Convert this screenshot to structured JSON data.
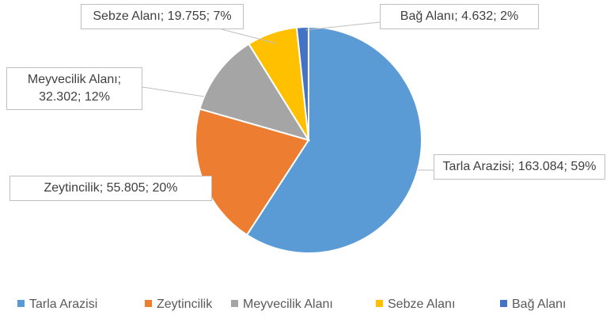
{
  "chart_data": {
    "type": "pie",
    "categories": [
      "Tarla Arazisi",
      "Zeytincilik",
      "Meyvecilik Alanı",
      "Sebze Alanı",
      "Bağ Alanı"
    ],
    "values": [
      163084,
      55805,
      32302,
      19755,
      4632
    ],
    "value_labels": [
      "Tarla Arazisi; 163.084; 59%",
      "Zeytincilik; 55.805; 20%",
      "Meyvecilik Alanı; 32.302; 12%",
      "Sebze Alanı; 19.755; 7%",
      "Bağ Alanı; 4.632; 2%"
    ],
    "colors": [
      "#5b9bd5",
      "#ed7d31",
      "#a5a5a5",
      "#ffc000",
      "#4472c4"
    ],
    "legend": "bottom"
  }
}
